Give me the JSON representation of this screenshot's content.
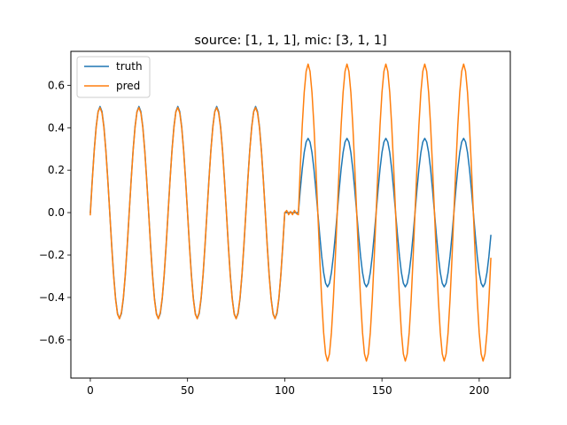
{
  "chart_data": {
    "type": "line",
    "title": "source: [1, 1, 1], mic: [3, 1, 1]",
    "xlabel": "",
    "ylabel": "",
    "xlim": [
      -10,
      216
    ],
    "ylim": [
      -0.78,
      0.76
    ],
    "x_ticks": [
      0,
      50,
      100,
      150,
      200
    ],
    "x_tick_labels": [
      "0",
      "50",
      "100",
      "150",
      "200"
    ],
    "y_ticks": [
      -0.6,
      -0.4,
      -0.2,
      0.0,
      0.2,
      0.4,
      0.6
    ],
    "y_tick_labels": [
      "−0.6",
      "−0.4",
      "−0.2",
      "0.0",
      "0.2",
      "0.4",
      "0.6"
    ],
    "grid": false,
    "legend_position": "top-left",
    "series": [
      {
        "name": "truth",
        "color": "#1f77b4",
        "x": [
          0,
          1,
          2,
          3,
          4,
          5,
          6,
          7,
          8,
          9,
          10,
          11,
          12,
          13,
          14,
          15,
          16,
          17,
          18,
          19,
          20,
          21,
          22,
          23,
          24,
          25,
          26,
          27,
          28,
          29,
          30,
          31,
          32,
          33,
          34,
          35,
          36,
          37,
          38,
          39,
          40,
          41,
          42,
          43,
          44,
          45,
          46,
          47,
          48,
          49,
          50,
          51,
          52,
          53,
          54,
          55,
          56,
          57,
          58,
          59,
          60,
          61,
          62,
          63,
          64,
          65,
          66,
          67,
          68,
          69,
          70,
          71,
          72,
          73,
          74,
          75,
          76,
          77,
          78,
          79,
          80,
          81,
          82,
          83,
          84,
          85,
          86,
          87,
          88,
          89,
          90,
          91,
          92,
          93,
          94,
          95,
          96,
          97,
          98,
          99,
          100,
          101,
          102,
          103,
          104,
          105,
          106,
          107,
          108,
          109,
          110,
          111,
          112,
          113,
          114,
          115,
          116,
          117,
          118,
          119,
          120,
          121,
          122,
          123,
          124,
          125,
          126,
          127,
          128,
          129,
          130,
          131,
          132,
          133,
          134,
          135,
          136,
          137,
          138,
          139,
          140,
          141,
          142,
          143,
          144,
          145,
          146,
          147,
          148,
          149,
          150,
          151,
          152,
          153,
          154,
          155,
          156,
          157,
          158,
          159,
          160,
          161,
          162,
          163,
          164,
          165,
          166,
          167,
          168,
          169,
          170,
          171,
          172,
          173,
          174,
          175,
          176,
          177,
          178,
          179,
          180,
          181,
          182,
          183,
          184,
          185,
          186,
          187,
          188,
          189,
          190,
          191,
          192,
          193,
          194,
          195,
          196,
          197,
          198,
          199,
          200,
          201,
          202,
          203,
          204,
          205,
          206
        ],
        "y": [
          0.0,
          0.155,
          0.294,
          0.405,
          0.476,
          0.5,
          0.476,
          0.405,
          0.294,
          0.155,
          0.0,
          -0.155,
          -0.294,
          -0.405,
          -0.476,
          -0.5,
          -0.476,
          -0.405,
          -0.294,
          -0.155,
          0.0,
          0.155,
          0.294,
          0.405,
          0.476,
          0.5,
          0.476,
          0.405,
          0.294,
          0.155,
          0.0,
          -0.155,
          -0.294,
          -0.405,
          -0.476,
          -0.5,
          -0.476,
          -0.405,
          -0.294,
          -0.155,
          0.0,
          0.155,
          0.294,
          0.405,
          0.476,
          0.5,
          0.476,
          0.405,
          0.294,
          0.155,
          0.0,
          -0.155,
          -0.294,
          -0.405,
          -0.476,
          -0.5,
          -0.476,
          -0.405,
          -0.294,
          -0.155,
          0.0,
          0.155,
          0.294,
          0.405,
          0.476,
          0.5,
          0.476,
          0.405,
          0.294,
          0.155,
          0.0,
          -0.155,
          -0.294,
          -0.405,
          -0.476,
          -0.5,
          -0.476,
          -0.405,
          -0.294,
          -0.155,
          0.0,
          0.155,
          0.294,
          0.405,
          0.476,
          0.5,
          0.476,
          0.405,
          0.294,
          0.155,
          0.0,
          -0.155,
          -0.294,
          -0.405,
          -0.476,
          -0.5,
          -0.476,
          -0.405,
          -0.294,
          -0.155,
          0.0,
          0.0,
          0.0,
          0.0,
          0.0,
          0.0,
          0.0,
          0.0,
          0.108,
          0.206,
          0.283,
          0.333,
          0.35,
          0.333,
          0.283,
          0.206,
          0.108,
          0.0,
          -0.108,
          -0.206,
          -0.283,
          -0.333,
          -0.35,
          -0.333,
          -0.283,
          -0.206,
          -0.108,
          0.0,
          0.108,
          0.206,
          0.283,
          0.333,
          0.35,
          0.333,
          0.283,
          0.206,
          0.108,
          0.0,
          -0.108,
          -0.206,
          -0.283,
          -0.333,
          -0.35,
          -0.333,
          -0.283,
          -0.206,
          -0.108,
          0.0,
          0.108,
          0.206,
          0.283,
          0.333,
          0.35,
          0.333,
          0.283,
          0.206,
          0.108,
          0.0,
          -0.108,
          -0.206,
          -0.283,
          -0.333,
          -0.35,
          -0.333,
          -0.283,
          -0.206,
          -0.108,
          0.0,
          0.108,
          0.206,
          0.283,
          0.333,
          0.35,
          0.333,
          0.283,
          0.206,
          0.108,
          0.0,
          -0.108,
          -0.206,
          -0.283,
          -0.333,
          -0.35,
          -0.333,
          -0.283,
          -0.206,
          -0.108,
          0.0,
          0.108,
          0.206,
          0.283,
          0.333,
          0.35,
          0.333,
          0.283,
          0.206,
          0.108,
          0.0,
          -0.108,
          -0.206,
          -0.283,
          -0.333,
          -0.35,
          -0.333,
          -0.283,
          -0.206,
          -0.108
        ]
      },
      {
        "name": "pred",
        "color": "#ff7f0e",
        "x": [
          0,
          1,
          2,
          3,
          4,
          5,
          6,
          7,
          8,
          9,
          10,
          11,
          12,
          13,
          14,
          15,
          16,
          17,
          18,
          19,
          20,
          21,
          22,
          23,
          24,
          25,
          26,
          27,
          28,
          29,
          30,
          31,
          32,
          33,
          34,
          35,
          36,
          37,
          38,
          39,
          40,
          41,
          42,
          43,
          44,
          45,
          46,
          47,
          48,
          49,
          50,
          51,
          52,
          53,
          54,
          55,
          56,
          57,
          58,
          59,
          60,
          61,
          62,
          63,
          64,
          65,
          66,
          67,
          68,
          69,
          70,
          71,
          72,
          73,
          74,
          75,
          76,
          77,
          78,
          79,
          80,
          81,
          82,
          83,
          84,
          85,
          86,
          87,
          88,
          89,
          90,
          91,
          92,
          93,
          94,
          95,
          96,
          97,
          98,
          99,
          100,
          101,
          102,
          103,
          104,
          105,
          106,
          107,
          108,
          109,
          110,
          111,
          112,
          113,
          114,
          115,
          116,
          117,
          118,
          119,
          120,
          121,
          122,
          123,
          124,
          125,
          126,
          127,
          128,
          129,
          130,
          131,
          132,
          133,
          134,
          135,
          136,
          137,
          138,
          139,
          140,
          141,
          142,
          143,
          144,
          145,
          146,
          147,
          148,
          149,
          150,
          151,
          152,
          153,
          154,
          155,
          156,
          157,
          158,
          159,
          160,
          161,
          162,
          163,
          164,
          165,
          166,
          167,
          168,
          169,
          170,
          171,
          172,
          173,
          174,
          175,
          176,
          177,
          178,
          179,
          180,
          181,
          182,
          183,
          184,
          185,
          186,
          187,
          188,
          189,
          190,
          191,
          192,
          193,
          194,
          195,
          196,
          197,
          198,
          199,
          200,
          201,
          202,
          203,
          204,
          205,
          206
        ],
        "y": [
          -0.01,
          0.15,
          0.29,
          0.4,
          0.475,
          0.495,
          0.47,
          0.4,
          0.29,
          0.15,
          0.0,
          -0.16,
          -0.3,
          -0.41,
          -0.48,
          -0.5,
          -0.47,
          -0.4,
          -0.29,
          -0.15,
          0.0,
          0.15,
          0.29,
          0.4,
          0.475,
          0.495,
          0.47,
          0.4,
          0.29,
          0.15,
          0.0,
          -0.16,
          -0.3,
          -0.41,
          -0.48,
          -0.5,
          -0.47,
          -0.4,
          -0.29,
          -0.15,
          0.0,
          0.15,
          0.29,
          0.4,
          0.475,
          0.495,
          0.47,
          0.4,
          0.29,
          0.15,
          0.0,
          -0.16,
          -0.3,
          -0.41,
          -0.48,
          -0.5,
          -0.47,
          -0.4,
          -0.29,
          -0.15,
          0.0,
          0.15,
          0.29,
          0.4,
          0.475,
          0.495,
          0.47,
          0.4,
          0.29,
          0.15,
          0.0,
          -0.16,
          -0.3,
          -0.41,
          -0.48,
          -0.5,
          -0.47,
          -0.4,
          -0.29,
          -0.15,
          0.0,
          0.15,
          0.29,
          0.4,
          0.475,
          0.495,
          0.47,
          0.4,
          0.29,
          0.15,
          0.0,
          -0.16,
          -0.3,
          -0.41,
          -0.48,
          -0.5,
          -0.47,
          -0.4,
          -0.29,
          -0.15,
          0.0,
          0.01,
          -0.01,
          0.005,
          -0.01,
          0.01,
          -0.005,
          -0.01,
          0.216,
          0.411,
          0.566,
          0.666,
          0.7,
          0.666,
          0.566,
          0.411,
          0.216,
          0.0,
          -0.216,
          -0.411,
          -0.566,
          -0.666,
          -0.7,
          -0.666,
          -0.566,
          -0.411,
          -0.216,
          0.0,
          0.216,
          0.411,
          0.566,
          0.666,
          0.7,
          0.666,
          0.566,
          0.411,
          0.216,
          0.0,
          -0.216,
          -0.411,
          -0.566,
          -0.666,
          -0.7,
          -0.666,
          -0.566,
          -0.411,
          -0.216,
          0.0,
          0.216,
          0.411,
          0.566,
          0.666,
          0.7,
          0.666,
          0.566,
          0.411,
          0.216,
          0.0,
          -0.216,
          -0.411,
          -0.566,
          -0.666,
          -0.7,
          -0.666,
          -0.566,
          -0.411,
          -0.216,
          0.0,
          0.216,
          0.411,
          0.566,
          0.666,
          0.7,
          0.666,
          0.566,
          0.411,
          0.216,
          0.0,
          -0.216,
          -0.411,
          -0.566,
          -0.666,
          -0.7,
          -0.666,
          -0.566,
          -0.411,
          -0.216,
          0.0,
          0.216,
          0.411,
          0.566,
          0.666,
          0.7,
          0.666,
          0.566,
          0.411,
          0.216,
          0.0,
          -0.216,
          -0.411,
          -0.566,
          -0.666,
          -0.7,
          -0.666,
          -0.566,
          -0.411,
          -0.216
        ]
      }
    ]
  }
}
